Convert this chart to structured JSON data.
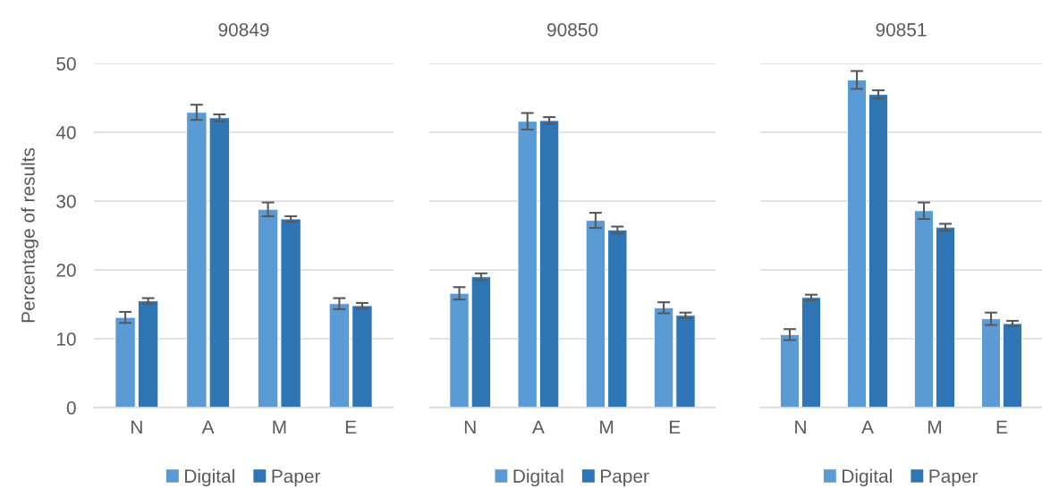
{
  "chart_data": [
    {
      "type": "bar",
      "title": "90849",
      "ylabel": "Percentage of results",
      "categories": [
        "N",
        "A",
        "M",
        "E"
      ],
      "series": [
        {
          "name": "Digital",
          "color": "#5b9bd5",
          "values": [
            13.1,
            42.9,
            28.8,
            15.1
          ],
          "errors": [
            0.8,
            1.1,
            1.0,
            0.8
          ]
        },
        {
          "name": "Paper",
          "color": "#2e75b6",
          "values": [
            15.5,
            42.1,
            27.4,
            14.8
          ],
          "errors": [
            0.4,
            0.5,
            0.4,
            0.4
          ]
        }
      ],
      "ylim": [
        0,
        50
      ],
      "yticks": [
        0,
        10,
        20,
        30,
        40,
        50
      ],
      "grid": "y",
      "legend": "bottom"
    },
    {
      "type": "bar",
      "title": "90850",
      "categories": [
        "N",
        "A",
        "M",
        "E"
      ],
      "series": [
        {
          "name": "Digital",
          "color": "#5b9bd5",
          "values": [
            16.6,
            41.6,
            27.2,
            14.5
          ],
          "errors": [
            0.9,
            1.2,
            1.1,
            0.8
          ]
        },
        {
          "name": "Paper",
          "color": "#2e75b6",
          "values": [
            19.0,
            41.7,
            25.8,
            13.4
          ],
          "errors": [
            0.5,
            0.5,
            0.5,
            0.4
          ]
        }
      ],
      "ylim": [
        0,
        50
      ],
      "yticks": [
        0,
        10,
        20,
        30,
        40,
        50
      ],
      "grid": "y",
      "legend": "bottom",
      "tick_labels": "x"
    },
    {
      "type": "bar",
      "title": "90851",
      "categories": [
        "N",
        "A",
        "M",
        "E"
      ],
      "series": [
        {
          "name": "Digital",
          "color": "#5b9bd5",
          "values": [
            10.6,
            47.6,
            28.6,
            12.9
          ],
          "errors": [
            0.8,
            1.3,
            1.2,
            0.9
          ]
        },
        {
          "name": "Paper",
          "color": "#2e75b6",
          "values": [
            16.0,
            45.5,
            26.2,
            12.2
          ],
          "errors": [
            0.4,
            0.6,
            0.5,
            0.4
          ]
        }
      ],
      "ylim": [
        0,
        50
      ],
      "yticks": [
        0,
        10,
        20,
        30,
        40,
        50
      ],
      "grid": "y",
      "legend": "bottom",
      "tick_labels": "x"
    }
  ]
}
